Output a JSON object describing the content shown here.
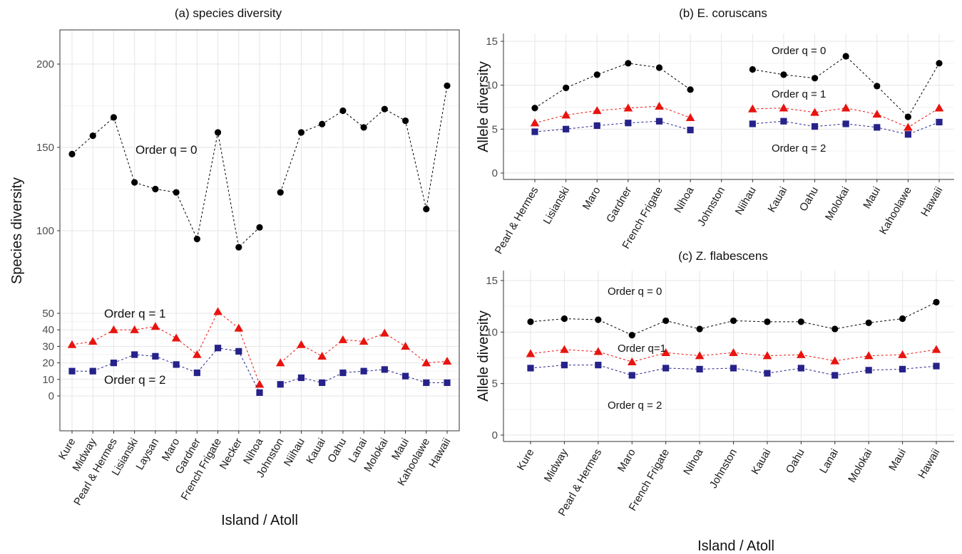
{
  "chart_data": [
    {
      "id": "a",
      "type": "line",
      "title": "(a) species diversity",
      "xlabel": "Island / Atoll",
      "ylabel": "Species diversity",
      "y_scale": "split-axis (0-50 and 100-200 segments)",
      "yticks_lower": [
        0,
        10,
        20,
        30,
        40,
        50
      ],
      "yticks_upper": [
        100,
        150,
        200
      ],
      "categories": [
        "Kure",
        "Midway",
        "Pearl & Hermes",
        "Lisianski",
        "Laysan",
        "Maro",
        "Gardner",
        "French Frigate",
        "Necker",
        "Nihoa",
        "Johnston",
        "Niihau",
        "Kauai",
        "Oahu",
        "Lanai",
        "Molokai",
        "Maui",
        "Kahoolawe",
        "Hawaii"
      ],
      "series": [
        {
          "key": "q0",
          "marker": "circle",
          "color": "#000000",
          "values": [
            146,
            157,
            168,
            129,
            125,
            123,
            95,
            159,
            90,
            102,
            123,
            159,
            164,
            172,
            162,
            173,
            166,
            113,
            187
          ]
        },
        {
          "key": "q1",
          "marker": "triangle",
          "color": "#e8140f",
          "values": [
            31,
            33,
            40,
            40,
            42,
            35,
            25,
            51,
            41,
            7,
            20,
            31,
            24,
            34,
            33,
            38,
            30,
            20,
            21
          ]
        },
        {
          "key": "q2",
          "marker": "square",
          "color": "#26228a",
          "values": [
            15,
            15,
            20,
            25,
            24,
            19,
            14,
            29,
            27,
            2,
            7,
            11,
            8,
            14,
            15,
            16,
            12,
            8,
            8
          ]
        }
      ],
      "annotations": [
        "Order q = 0",
        "Order q = 1",
        "Order q = 2"
      ],
      "breaks": [
        {
          "series": "all",
          "after": "Nihoa"
        }
      ]
    },
    {
      "id": "b",
      "type": "line",
      "title": "(b) E. coruscans",
      "ylabel": "Allele diversity",
      "ylim": [
        0,
        15
      ],
      "yticks": [
        0,
        5,
        10,
        15
      ],
      "categories": [
        "Pearl & Hermes",
        "Lisianski",
        "Maro",
        "Gardner",
        "French Frigate",
        "Nihoa",
        "Johnston",
        "Niihau",
        "Kauai",
        "Oahu",
        "Molokai",
        "Maui",
        "Kahoolawe",
        "Hawaii"
      ],
      "series": [
        {
          "key": "q0",
          "marker": "circle",
          "color": "#000000",
          "values": [
            7.4,
            9.7,
            11.2,
            12.5,
            12.0,
            9.5,
            null,
            11.8,
            11.2,
            10.8,
            13.3,
            9.9,
            6.4,
            12.5
          ]
        },
        {
          "key": "q1",
          "marker": "triangle",
          "color": "#e8140f",
          "values": [
            5.7,
            6.6,
            7.1,
            7.4,
            7.6,
            6.3,
            null,
            7.3,
            7.4,
            6.9,
            7.4,
            6.7,
            5.2,
            7.4
          ]
        },
        {
          "key": "q2",
          "marker": "square",
          "color": "#26228a",
          "values": [
            4.7,
            5.0,
            5.4,
            5.7,
            5.9,
            4.9,
            null,
            5.6,
            5.9,
            5.3,
            5.6,
            5.2,
            4.4,
            5.8
          ]
        }
      ],
      "annotations": [
        "Order q = 0",
        "Order q = 1",
        "Order q = 2"
      ]
    },
    {
      "id": "c",
      "type": "line",
      "title": "(c) Z. flabescens",
      "xlabel": "Island / Atoll",
      "ylabel": "Allele  diversity",
      "ylim": [
        0,
        15
      ],
      "yticks": [
        0,
        5,
        10,
        15
      ],
      "categories": [
        "Kure",
        "Midway",
        "Pearl & Hermes",
        "Maro",
        "French Frigate",
        "Nihoa",
        "Johnston",
        "Kauai",
        "Oahu",
        "Lanai",
        "Molokai",
        "Maui",
        "Hawaii"
      ],
      "series": [
        {
          "key": "q0",
          "marker": "circle",
          "color": "#000000",
          "values": [
            11.0,
            11.3,
            11.2,
            9.7,
            11.1,
            10.3,
            11.1,
            11.0,
            11.0,
            10.3,
            10.9,
            11.3,
            12.9
          ]
        },
        {
          "key": "q1",
          "marker": "triangle",
          "color": "#e8140f",
          "values": [
            7.9,
            8.3,
            8.1,
            7.1,
            8.0,
            7.7,
            8.0,
            7.7,
            7.8,
            7.2,
            7.7,
            7.8,
            8.3
          ]
        },
        {
          "key": "q2",
          "marker": "square",
          "color": "#26228a",
          "values": [
            6.5,
            6.8,
            6.8,
            5.8,
            6.5,
            6.4,
            6.5,
            6.0,
            6.5,
            5.8,
            6.3,
            6.4,
            6.7
          ]
        }
      ],
      "annotations": [
        "Order q = 0",
        "Order q=1",
        "Order q = 2"
      ]
    }
  ]
}
